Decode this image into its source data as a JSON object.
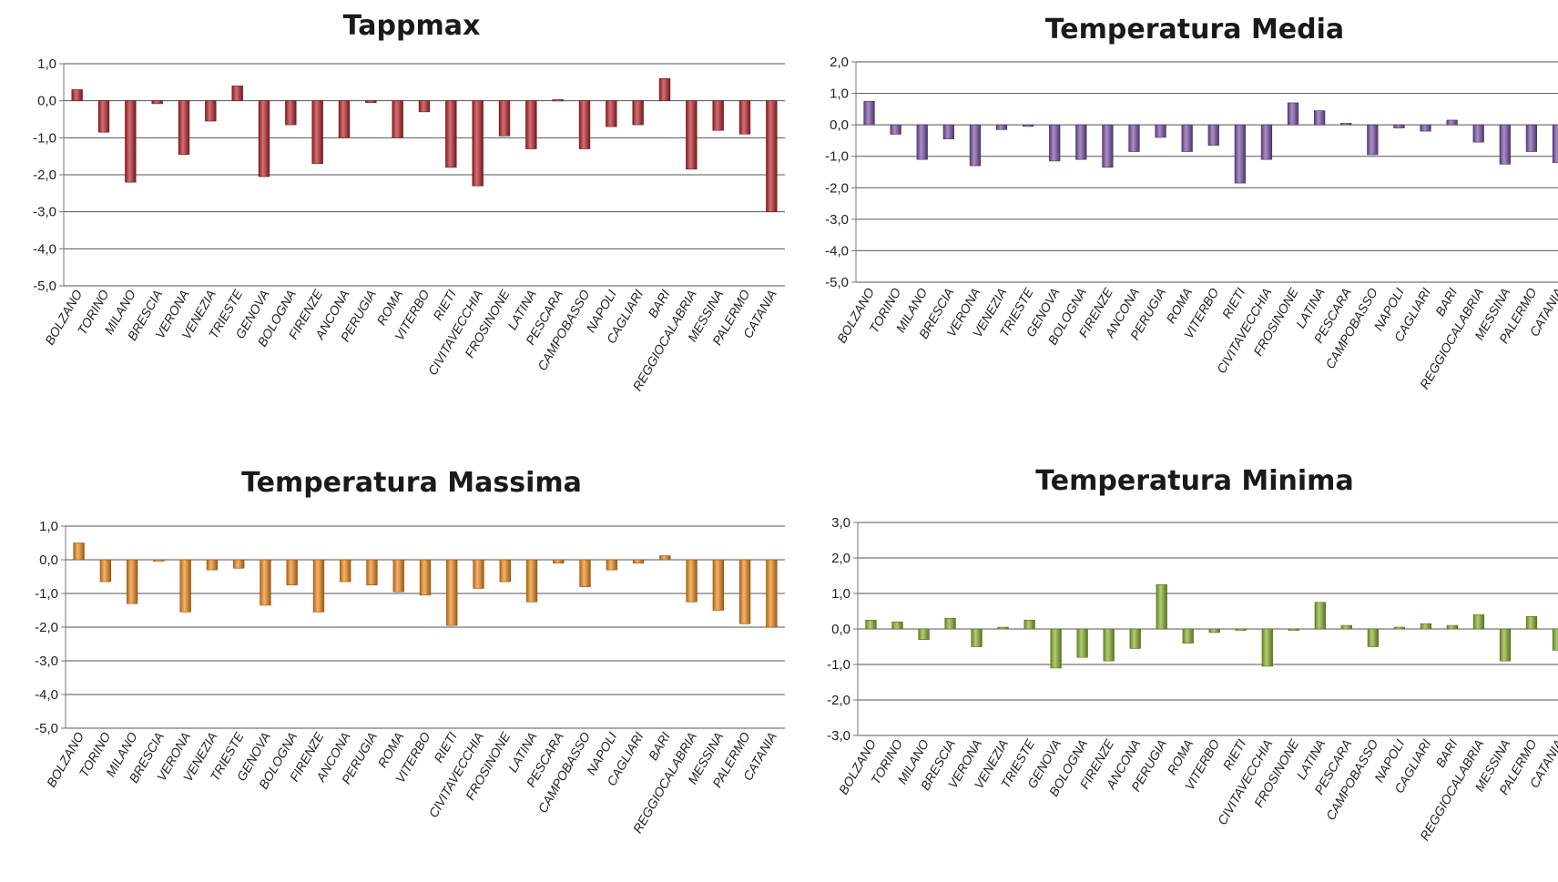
{
  "chart_data": [
    {
      "type": "bar",
      "title": "Tappmax",
      "color": "#b8252a",
      "ylim": [
        -5,
        1
      ],
      "yticks": [
        "1,0",
        "0,0",
        "-1,0",
        "-2,0",
        "-3,0",
        "-4,0",
        "-5,0"
      ],
      "categories": [
        "BOLZANO",
        "TORINO",
        "MILANO",
        "BRESCIA",
        "VERONA",
        "VENEZIA",
        "TRIESTE",
        "GENOVA",
        "BOLOGNA",
        "FIRENZE",
        "ANCONA",
        "PERUGIA",
        "ROMA",
        "VITERBO",
        "RIETI",
        "CIVITAVECCHIA",
        "FROSINONE",
        "LATINA",
        "PESCARA",
        "CAMPOBASSO",
        "NAPOLI",
        "CAGLIARI",
        "BARI",
        "REGGIOCALABRIA",
        "MESSINA",
        "PALERMO",
        "CATANIA"
      ],
      "values": [
        0.3,
        -0.85,
        -2.2,
        -0.08,
        -1.45,
        -0.55,
        0.4,
        -2.05,
        -0.65,
        -1.7,
        -1.0,
        -0.05,
        -1.0,
        -0.3,
        -1.8,
        -2.3,
        -0.95,
        -1.3,
        0.03,
        -1.3,
        -0.7,
        -0.65,
        0.6,
        -1.85,
        -0.8,
        -0.9,
        -3.0
      ]
    },
    {
      "type": "bar",
      "title": "Temperatura Media",
      "color": "#7b52a8",
      "ylim": [
        -5,
        2
      ],
      "yticks": [
        "2,0",
        "1,0",
        "0,0",
        "-1,0",
        "-2,0",
        "-3,0",
        "-4,0",
        "-5,0"
      ],
      "categories": [
        "BOLZANO",
        "TORINO",
        "MILANO",
        "BRESCIA",
        "VERONA",
        "VENEZIA",
        "TRIESTE",
        "GENOVA",
        "BOLOGNA",
        "FIRENZE",
        "ANCONA",
        "PERUGIA",
        "ROMA",
        "VITERBO",
        "RIETI",
        "CIVITAVECCHIA",
        "FROSINONE",
        "LATINA",
        "PESCARA",
        "CAMPOBASSO",
        "NAPOLI",
        "CAGLIARI",
        "BARI",
        "REGGIOCALABRIA",
        "MESSINA",
        "PALERMO",
        "CATANIA"
      ],
      "values": [
        0.75,
        -0.3,
        -1.1,
        -0.45,
        -1.3,
        -0.15,
        -0.05,
        -1.15,
        -1.1,
        -1.35,
        -0.85,
        -0.4,
        -0.85,
        -0.65,
        -1.85,
        -1.1,
        0.7,
        0.45,
        0.05,
        -0.95,
        -0.1,
        -0.2,
        0.15,
        -0.55,
        -1.25,
        -0.85,
        -1.2
      ]
    },
    {
      "type": "bar",
      "title": "Temperatura Massima",
      "color": "#f08a1c",
      "ylim": [
        -5,
        1
      ],
      "yticks": [
        "1,0",
        "0,0",
        "-1,0",
        "-2,0",
        "-3,0",
        "-4,0",
        "-5,0"
      ],
      "categories": [
        "BOLZANO",
        "TORINO",
        "MILANO",
        "BRESCIA",
        "VERONA",
        "VENEZIA",
        "TRIESTE",
        "GENOVA",
        "BOLOGNA",
        "FIRENZE",
        "ANCONA",
        "PERUGIA",
        "ROMA",
        "VITERBO",
        "RIETI",
        "CIVITAVECCHIA",
        "FROSINONE",
        "LATINA",
        "PESCARA",
        "CAMPOBASSO",
        "NAPOLI",
        "CAGLIARI",
        "BARI",
        "REGGIOCALABRIA",
        "MESSINA",
        "PALERMO",
        "CATANIA"
      ],
      "values": [
        0.5,
        -0.65,
        -1.3,
        -0.02,
        -1.55,
        -0.3,
        -0.25,
        -1.35,
        -0.75,
        -1.55,
        -0.65,
        -0.75,
        -0.95,
        -1.05,
        -1.95,
        -0.85,
        -0.65,
        -1.25,
        -0.1,
        -0.8,
        -0.3,
        -0.1,
        0.12,
        -1.25,
        -1.5,
        -1.9,
        -2.0
      ]
    },
    {
      "type": "bar",
      "title": "Temperatura Minima",
      "color": "#8ab22e",
      "ylim": [
        -3,
        3
      ],
      "yticks": [
        "3,0",
        "2,0",
        "1,0",
        "0,0",
        "-1,0",
        "-2,0",
        "-3,0"
      ],
      "categories": [
        "BOLZANO",
        "TORINO",
        "MILANO",
        "BRESCIA",
        "VERONA",
        "VENEZIA",
        "TRIESTE",
        "GENOVA",
        "BOLOGNA",
        "FIRENZE",
        "ANCONA",
        "PERUGIA",
        "ROMA",
        "VITERBO",
        "RIETI",
        "CIVITAVECCHIA",
        "FROSINONE",
        "LATINA",
        "PESCARA",
        "CAMPOBASSO",
        "NAPOLI",
        "CAGLIARI",
        "BARI",
        "REGGIOCALABRIA",
        "MESSINA",
        "PALERMO",
        "CATANIA"
      ],
      "values": [
        0.25,
        0.2,
        -0.3,
        0.3,
        -0.5,
        0.05,
        0.25,
        -1.1,
        -0.8,
        -0.9,
        -0.55,
        1.25,
        -0.4,
        -0.1,
        -0.02,
        -1.05,
        -0.02,
        0.75,
        0.1,
        -0.5,
        0.05,
        0.15,
        0.1,
        0.4,
        -0.9,
        0.35,
        -0.6
      ]
    }
  ]
}
